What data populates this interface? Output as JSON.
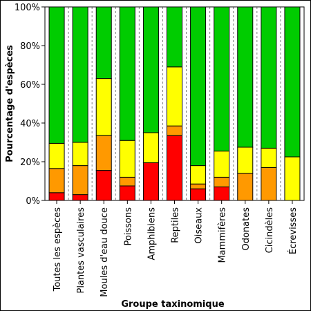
{
  "chart_data": {
    "type": "bar",
    "stacked": true,
    "percent": true,
    "xlabel": "Groupe taxinomique",
    "ylabel": "Pourcentage d'espèces",
    "ylim": [
      0,
      100
    ],
    "yticks": [
      "0%",
      "20%",
      "40%",
      "60%",
      "80%",
      "100%"
    ],
    "grid": "vertical dashed",
    "categories": [
      "Toutes les espèces",
      "Plantes vasculaires",
      "Moules d'eau douce",
      "Poissons",
      "Amphibiens",
      "Reptiles",
      "Oiseaux",
      "Mammifères",
      "Odonates",
      "Cicindèles",
      "Écrevisses"
    ],
    "series": [
      {
        "color": "#ff0000",
        "values": [
          4,
          3,
          15.5,
          7.5,
          19.5,
          33.5,
          6,
          7,
          0,
          0,
          0
        ]
      },
      {
        "color": "#ff9900",
        "values": [
          12.5,
          15,
          18,
          4.5,
          0,
          5,
          2.5,
          5,
          14,
          17,
          0
        ]
      },
      {
        "color": "#ffff00",
        "values": [
          13,
          12,
          29.5,
          19,
          15.5,
          30.5,
          9.5,
          13.5,
          13.5,
          10,
          22.5
        ]
      },
      {
        "color": "#00cc00",
        "values": [
          70.5,
          70,
          37,
          69,
          65,
          31,
          82,
          74.5,
          72.5,
          73,
          77.5
        ]
      }
    ]
  }
}
